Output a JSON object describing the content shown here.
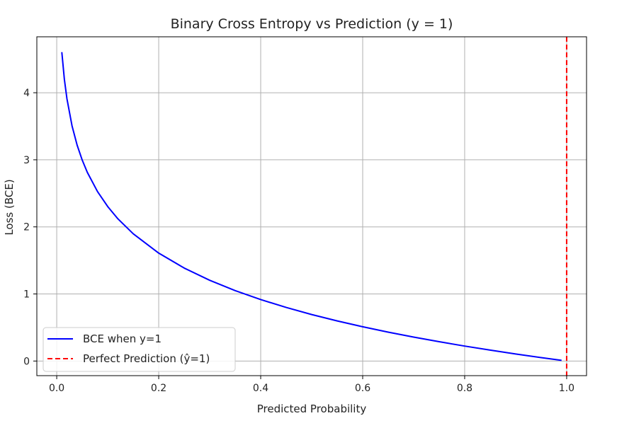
{
  "chart_data": {
    "type": "line",
    "title": "Binary Cross Entropy vs Prediction (y = 1)",
    "xlabel": "Predicted Probability",
    "ylabel": "Loss (BCE)",
    "xlim": [
      -0.039,
      1.039
    ],
    "ylim": [
      -0.218,
      4.834
    ],
    "x_ticks": [
      0.0,
      0.2,
      0.4,
      0.6,
      0.8,
      1.0
    ],
    "x_tick_labels": [
      "0.0",
      "0.2",
      "0.4",
      "0.6",
      "0.8",
      "1.0"
    ],
    "y_ticks": [
      0,
      1,
      2,
      3,
      4
    ],
    "y_tick_labels": [
      "0",
      "1",
      "2",
      "3",
      "4"
    ],
    "grid": true,
    "legend_position": "lower-left",
    "series": [
      {
        "name": "BCE when y=1",
        "color": "#0000ff",
        "style": "solid",
        "x": [
          0.01,
          0.015,
          0.02,
          0.03,
          0.04,
          0.05,
          0.06,
          0.08,
          0.1,
          0.12,
          0.15,
          0.2,
          0.25,
          0.3,
          0.35,
          0.4,
          0.45,
          0.5,
          0.55,
          0.6,
          0.65,
          0.7,
          0.75,
          0.8,
          0.85,
          0.9,
          0.95,
          0.99
        ],
        "y": [
          4.605,
          4.2,
          3.912,
          3.507,
          3.219,
          2.996,
          2.813,
          2.526,
          2.303,
          2.12,
          1.897,
          1.609,
          1.386,
          1.204,
          1.05,
          0.916,
          0.799,
          0.693,
          0.598,
          0.511,
          0.431,
          0.357,
          0.288,
          0.223,
          0.163,
          0.105,
          0.051,
          0.01
        ]
      },
      {
        "name": "Perfect Prediction (ŷ=1)",
        "color": "#ff0000",
        "style": "dashed",
        "vline_x": 1.0
      }
    ]
  }
}
